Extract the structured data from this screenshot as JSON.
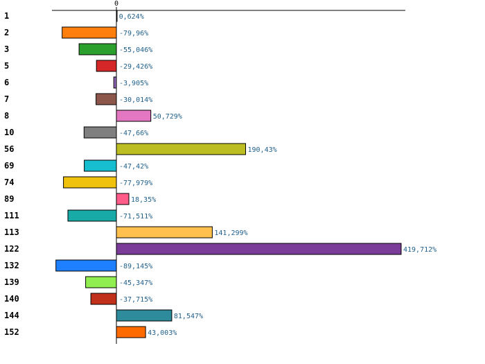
{
  "chart_data": {
    "type": "bar",
    "orientation": "horizontal",
    "title": "",
    "xlabel": "",
    "ylabel": "",
    "xlim": [
      -100,
      450
    ],
    "x_tick_labels": [
      "0"
    ],
    "categories": [
      "1",
      "2",
      "3",
      "5",
      "6",
      "7",
      "8",
      "10",
      "56",
      "69",
      "74",
      "89",
      "111",
      "113",
      "122",
      "132",
      "139",
      "140",
      "144",
      "152"
    ],
    "values": [
      0.624,
      -79.96,
      -55.046,
      -29.426,
      -3.905,
      -30.014,
      50.729,
      -47.66,
      190.43,
      -47.42,
      -77.979,
      18.35,
      -71.511,
      141.299,
      419.712,
      -89.145,
      -45.347,
      -37.715,
      81.547,
      43.003
    ],
    "value_labels": [
      "0,624%",
      "-79,96%",
      "-55,046%",
      "-29,426%",
      "-3,905%",
      "-30,014%",
      "50,729%",
      "-47,66%",
      "190,43%",
      "-47,42%",
      "-77,979%",
      "18,35%",
      "-71,511%",
      "141,299%",
      "419,712%",
      "-89,145%",
      "-45,347%",
      "-37,715%",
      "81,547%",
      "43,003%"
    ],
    "colors": [
      "#1f77b4",
      "#ff7f0e",
      "#2ca02c",
      "#d62728",
      "#9467bd",
      "#8c564b",
      "#e377c2",
      "#7f7f7f",
      "#bcbd22",
      "#17becf",
      "#f0c20e",
      "#ff5c8a",
      "#17aaa7",
      "#ffc04d",
      "#7b3b98",
      "#1e7fff",
      "#90ee50",
      "#c0301a",
      "#2e8b9b",
      "#ff6a00"
    ],
    "grid": false,
    "legend": "none"
  }
}
